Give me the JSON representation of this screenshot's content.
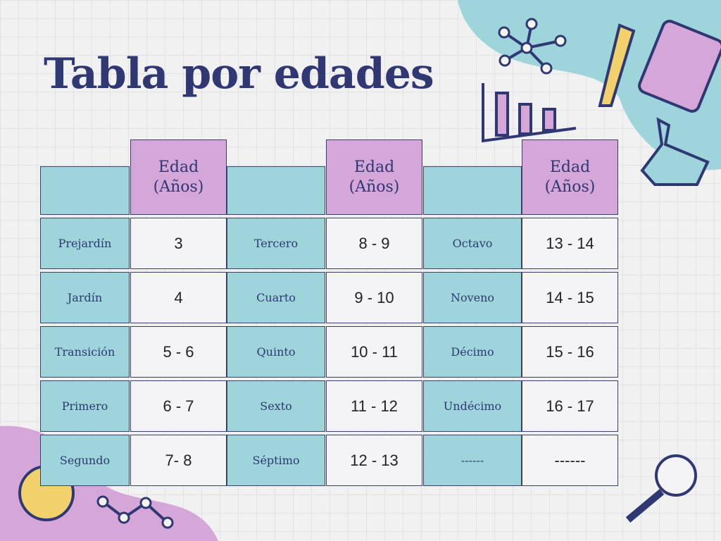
{
  "title": "Tabla por edades",
  "table": {
    "headers": [
      "Edad (Años)",
      "Edad (Años)",
      "Edad (Años)"
    ],
    "rows": [
      [
        "Prejardín",
        "3",
        "Tercero",
        "8 - 9",
        "Octavo",
        "13 - 14"
      ],
      [
        "Jardín",
        "4",
        "Cuarto",
        "9 - 10",
        "Noveno",
        "14 - 15"
      ],
      [
        "Transición",
        "5 - 6",
        "Quinto",
        "10 - 11",
        "Décimo",
        "15 - 16"
      ],
      [
        "Primero",
        "6 - 7",
        "Sexto",
        "11 - 12",
        "Undécimo",
        "16 - 17"
      ],
      [
        "Segundo",
        "7- 8",
        "Séptimo",
        "12 - 13",
        "------",
        "------"
      ]
    ]
  }
}
